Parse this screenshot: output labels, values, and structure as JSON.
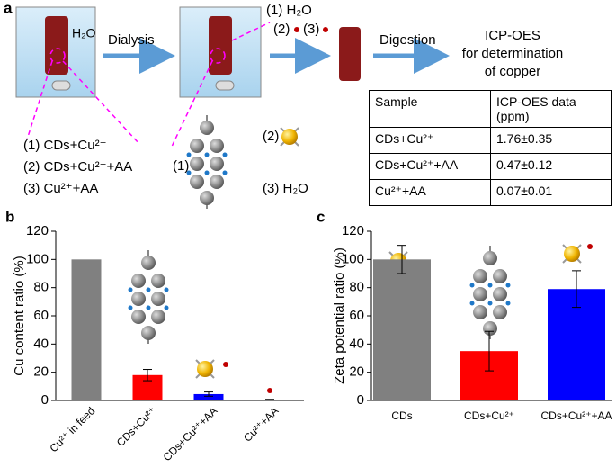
{
  "panel_a": {
    "label": "a",
    "beaker_text": "H₂O",
    "step1": "Dialysis",
    "dialysis_items": [
      "(1) H₂O",
      "(2)",
      "(3)"
    ],
    "step2": "Digestion",
    "icp_lines": [
      "ICP-OES",
      "for determination",
      "of copper"
    ],
    "samples": [
      "(1) CDs+Cu²⁺",
      "(2) CDs+Cu²⁺+AA",
      "(3) Cu²⁺+AA"
    ],
    "species": [
      "(1)",
      "(2)",
      "(3) H₂O"
    ],
    "table": {
      "header": [
        "Sample",
        "ICP-OES data (ppm)"
      ],
      "rows": [
        [
          "CDs+Cu²⁺",
          "1.76±0.35"
        ],
        [
          "CDs+Cu²⁺+AA",
          "0.47±0.12"
        ],
        [
          "Cu²⁺+AA",
          "0.07±0.01"
        ]
      ]
    }
  },
  "chart_data": [
    {
      "type": "bar",
      "panel_label": "b",
      "ylabel": "Cu content ratio (%)",
      "categories": [
        "Cu²⁺ in feed",
        "CDs+Cu²⁺",
        "CDs+Cu²⁺+AA",
        "Cu²⁺+AA"
      ],
      "values": [
        100,
        18,
        4.5,
        0.5
      ],
      "errors": [
        0,
        4,
        1.5,
        0.3
      ],
      "colors": [
        "#808080",
        "#ff0000",
        "#0000ff",
        "#cc00cc"
      ],
      "ylim": [
        0,
        120
      ],
      "yticks": [
        0,
        20,
        40,
        60,
        80,
        100,
        120
      ]
    },
    {
      "type": "bar",
      "panel_label": "c",
      "ylabel": "Zeta potential ratio (%)",
      "categories": [
        "CDs",
        "CDs+Cu²⁺",
        "CDs+Cu²⁺+AA"
      ],
      "values": [
        100,
        35,
        79
      ],
      "errors": [
        10,
        14,
        13
      ],
      "colors": [
        "#808080",
        "#ff0000",
        "#0000ff"
      ],
      "ylim": [
        0,
        120
      ],
      "yticks": [
        0,
        20,
        40,
        60,
        80,
        100,
        120
      ]
    }
  ]
}
